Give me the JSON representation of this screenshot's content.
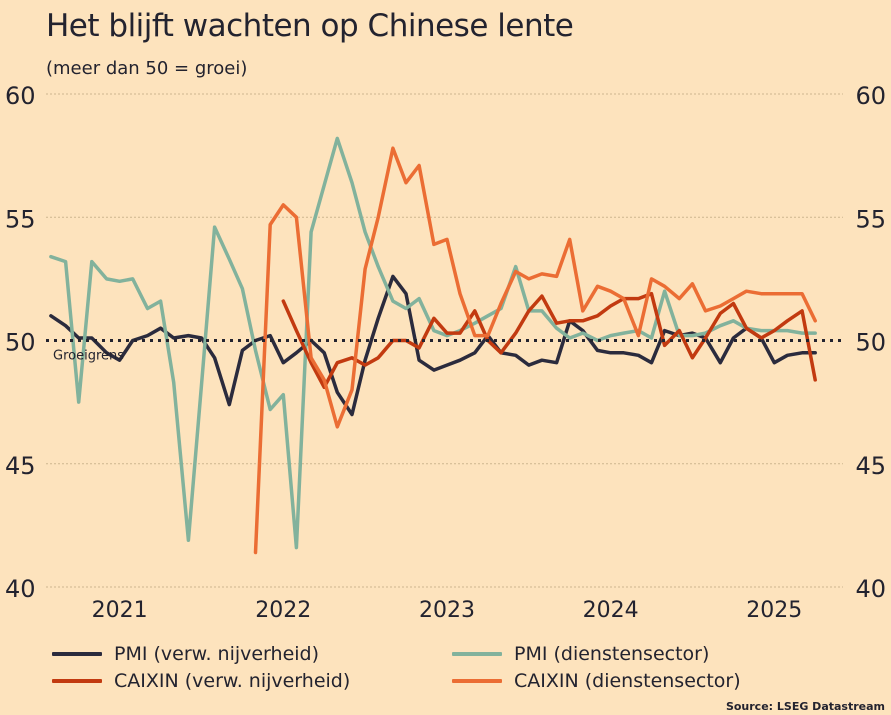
{
  "title": "Het blijft wachten op Chinese lente",
  "subtitle": "(meer dan 50 = groei)",
  "source": "Source: LSEG Datastream",
  "colors": {
    "background": "#fde3bd",
    "pmi_manufacturing": "#2b2b3d",
    "pmi_services": "#82b29c",
    "caixin_manufacturing": "#c23a10",
    "caixin_services": "#eb6d34"
  },
  "chart_data": {
    "type": "line",
    "title": "Het blijft wachten op Chinese lente",
    "subtitle": "(meer dan 50 = groei)",
    "ylim": [
      40,
      60
    ],
    "y_ticks": [
      40,
      45,
      50,
      55,
      60
    ],
    "x_ticks": [
      "2021",
      "2022",
      "2023",
      "2024",
      "2025"
    ],
    "x_tick_positions": [
      2021.0,
      2022.0,
      2023.0,
      2024.0,
      2025.0
    ],
    "xlim": [
      2020.55,
      2025.42
    ],
    "grid": true,
    "reference_line": {
      "value": 50,
      "label": "Groeigrens"
    },
    "legend_position": "bottom",
    "series": [
      {
        "name": "PMI (verw. nijverheid)",
        "color": "#2b2b3d",
        "x": [
          2020.58,
          2020.67,
          2020.75,
          2020.83,
          2020.92,
          2021.0,
          2021.08,
          2021.17,
          2021.25,
          2021.33,
          2021.42,
          2021.5,
          2021.58,
          2021.67,
          2021.75,
          2021.83,
          2021.92,
          2022.0,
          2022.08,
          2022.17,
          2022.25,
          2022.33,
          2022.42,
          2022.5,
          2022.58,
          2022.67,
          2022.75,
          2022.83,
          2022.92,
          2023.0,
          2023.08,
          2023.17,
          2023.25,
          2023.33,
          2023.42,
          2023.5,
          2023.58,
          2023.67,
          2023.75,
          2023.83,
          2023.92,
          2024.0,
          2024.08,
          2024.17,
          2024.25,
          2024.33,
          2024.42,
          2024.5,
          2024.58,
          2024.67,
          2024.75,
          2024.83,
          2024.92,
          2025.0,
          2025.08,
          2025.17,
          2025.25
        ],
        "y": [
          51.0,
          50.6,
          50.1,
          50.1,
          49.5,
          49.2,
          50.0,
          50.2,
          50.5,
          50.1,
          50.2,
          50.1,
          49.3,
          47.4,
          49.6,
          50.0,
          50.2,
          49.1,
          49.5,
          50.0,
          49.5,
          47.9,
          47.0,
          49.2,
          50.9,
          52.6,
          51.9,
          49.2,
          48.8,
          49.0,
          49.2,
          49.5,
          50.2,
          49.5,
          49.4,
          49.0,
          49.2,
          49.1,
          50.8,
          50.4,
          49.6,
          49.5,
          49.5,
          49.4,
          49.1,
          50.4,
          50.2,
          50.3,
          50.1,
          49.1,
          50.1,
          50.5,
          50.1,
          49.1,
          49.4,
          49.5,
          49.5
        ]
      },
      {
        "name": "PMI (dienstensector)",
        "color": "#82b29c",
        "x": [
          2020.58,
          2020.67,
          2020.75,
          2020.83,
          2020.92,
          2021.0,
          2021.08,
          2021.17,
          2021.25,
          2021.33,
          2021.42,
          2021.5,
          2021.58,
          2021.67,
          2021.75,
          2021.83,
          2021.92,
          2022.0,
          2022.08,
          2022.17,
          2022.25,
          2022.33,
          2022.42,
          2022.5,
          2022.58,
          2022.67,
          2022.75,
          2022.83,
          2022.92,
          2023.0,
          2023.08,
          2023.17,
          2023.25,
          2023.33,
          2023.42,
          2023.5,
          2023.58,
          2023.67,
          2023.75,
          2023.83,
          2023.92,
          2024.0,
          2024.08,
          2024.17,
          2024.25,
          2024.33,
          2024.42,
          2024.5,
          2024.58,
          2024.67,
          2024.75,
          2024.83,
          2024.92,
          2025.0,
          2025.08,
          2025.17,
          2025.25
        ],
        "y": [
          53.4,
          53.2,
          47.5,
          53.2,
          52.5,
          52.4,
          52.5,
          51.3,
          51.6,
          48.3,
          41.9,
          48.2,
          54.6,
          53.3,
          52.1,
          49.6,
          47.2,
          47.8,
          41.6,
          54.4,
          56.3,
          58.2,
          56.4,
          54.4,
          53.0,
          51.6,
          51.3,
          51.7,
          50.4,
          50.2,
          50.4,
          50.7,
          51.0,
          51.3,
          53.0,
          51.2,
          51.2,
          50.5,
          50.1,
          50.3,
          50.0,
          50.2,
          50.3,
          50.4,
          50.1,
          52.0,
          50.2,
          50.2,
          50.3,
          50.6,
          50.8,
          50.5,
          50.4,
          50.4,
          50.4,
          50.3,
          50.3
        ]
      },
      {
        "name": "CAIXIN (verw. nijverheid)",
        "color": "#c23a10",
        "x": [
          2022.0,
          2022.08,
          2022.17,
          2022.25,
          2022.33,
          2022.42,
          2022.5,
          2022.58,
          2022.67,
          2022.75,
          2022.83,
          2022.92,
          2023.0,
          2023.08,
          2023.17,
          2023.25,
          2023.33,
          2023.42,
          2023.5,
          2023.58,
          2023.67,
          2023.75,
          2023.83,
          2023.92,
          2024.0,
          2024.08,
          2024.17,
          2024.25,
          2024.33,
          2024.42,
          2024.5,
          2024.58,
          2024.67,
          2024.75,
          2024.83,
          2024.92,
          2025.0,
          2025.08,
          2025.17,
          2025.25
        ],
        "y": [
          51.6,
          50.4,
          49.1,
          48.1,
          49.1,
          49.3,
          49.0,
          49.3,
          50.0,
          50.0,
          49.7,
          50.9,
          50.3,
          50.3,
          51.2,
          50.0,
          49.5,
          50.3,
          51.2,
          51.8,
          50.7,
          50.8,
          50.8,
          51.0,
          51.4,
          51.7,
          51.7,
          51.9,
          49.8,
          50.4,
          49.3,
          50.1,
          51.1,
          51.5,
          50.5,
          50.1,
          50.4,
          50.8,
          51.2,
          48.4
        ]
      },
      {
        "name": "CAIXIN (dienstensector)",
        "color": "#eb6d34",
        "x": [
          2021.83,
          2021.92,
          2022.0,
          2022.08,
          2022.17,
          2022.25,
          2022.33,
          2022.42,
          2022.5,
          2022.58,
          2022.67,
          2022.75,
          2022.83,
          2022.92,
          2023.0,
          2023.08,
          2023.17,
          2023.25,
          2023.33,
          2023.42,
          2023.5,
          2023.58,
          2023.67,
          2023.75,
          2023.83,
          2023.92,
          2024.0,
          2024.08,
          2024.17,
          2024.25,
          2024.33,
          2024.42,
          2024.5,
          2024.58,
          2024.67,
          2024.75,
          2024.83,
          2024.92,
          2025.0,
          2025.08,
          2025.17,
          2025.25
        ],
        "y": [
          41.4,
          54.7,
          55.5,
          55.0,
          49.3,
          48.4,
          46.5,
          48.0,
          52.9,
          55.0,
          57.8,
          56.4,
          57.1,
          53.9,
          54.1,
          51.9,
          50.2,
          50.2,
          51.5,
          52.8,
          52.5,
          52.7,
          52.6,
          54.1,
          51.2,
          52.2,
          52.0,
          51.7,
          50.2,
          52.5,
          52.2,
          51.7,
          52.3,
          51.2,
          51.4,
          51.7,
          52.0,
          51.9,
          51.9,
          51.9,
          51.9,
          50.8
        ]
      }
    ]
  }
}
